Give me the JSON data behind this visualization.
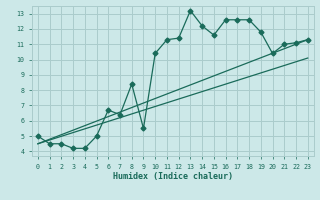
{
  "bg_color": "#cce8e8",
  "line_color": "#1a6b5a",
  "grid_color": "#aacccc",
  "xlabel": "Humidex (Indice chaleur)",
  "ylabel_ticks": [
    4,
    5,
    6,
    7,
    8,
    9,
    10,
    11,
    12,
    13
  ],
  "xtick_labels": [
    "0",
    "1",
    "2",
    "3",
    "4",
    "5",
    "6",
    "7",
    "8",
    "9",
    "10",
    "11",
    "12",
    "13",
    "14",
    "15",
    "16",
    "17",
    "18",
    "19",
    "20",
    "21",
    "22",
    "23"
  ],
  "xlim": [
    -0.5,
    23.5
  ],
  "ylim": [
    3.7,
    13.5
  ],
  "line1_x": [
    0,
    1,
    2,
    3,
    4,
    5,
    6,
    7,
    8,
    9,
    10,
    11,
    12,
    13,
    14,
    15,
    16,
    17,
    18,
    19,
    20,
    21,
    22,
    23
  ],
  "line1_y": [
    5.0,
    4.5,
    4.5,
    4.2,
    4.2,
    5.0,
    6.7,
    6.4,
    8.4,
    5.5,
    10.4,
    11.3,
    11.4,
    13.2,
    12.2,
    11.6,
    12.6,
    12.6,
    12.6,
    11.8,
    10.4,
    11.0,
    11.1,
    11.3
  ],
  "line2_x": [
    0,
    23
  ],
  "line2_y": [
    4.5,
    11.3
  ],
  "line3_x": [
    0,
    23
  ],
  "line3_y": [
    4.5,
    10.1
  ],
  "font_family": "monospace"
}
